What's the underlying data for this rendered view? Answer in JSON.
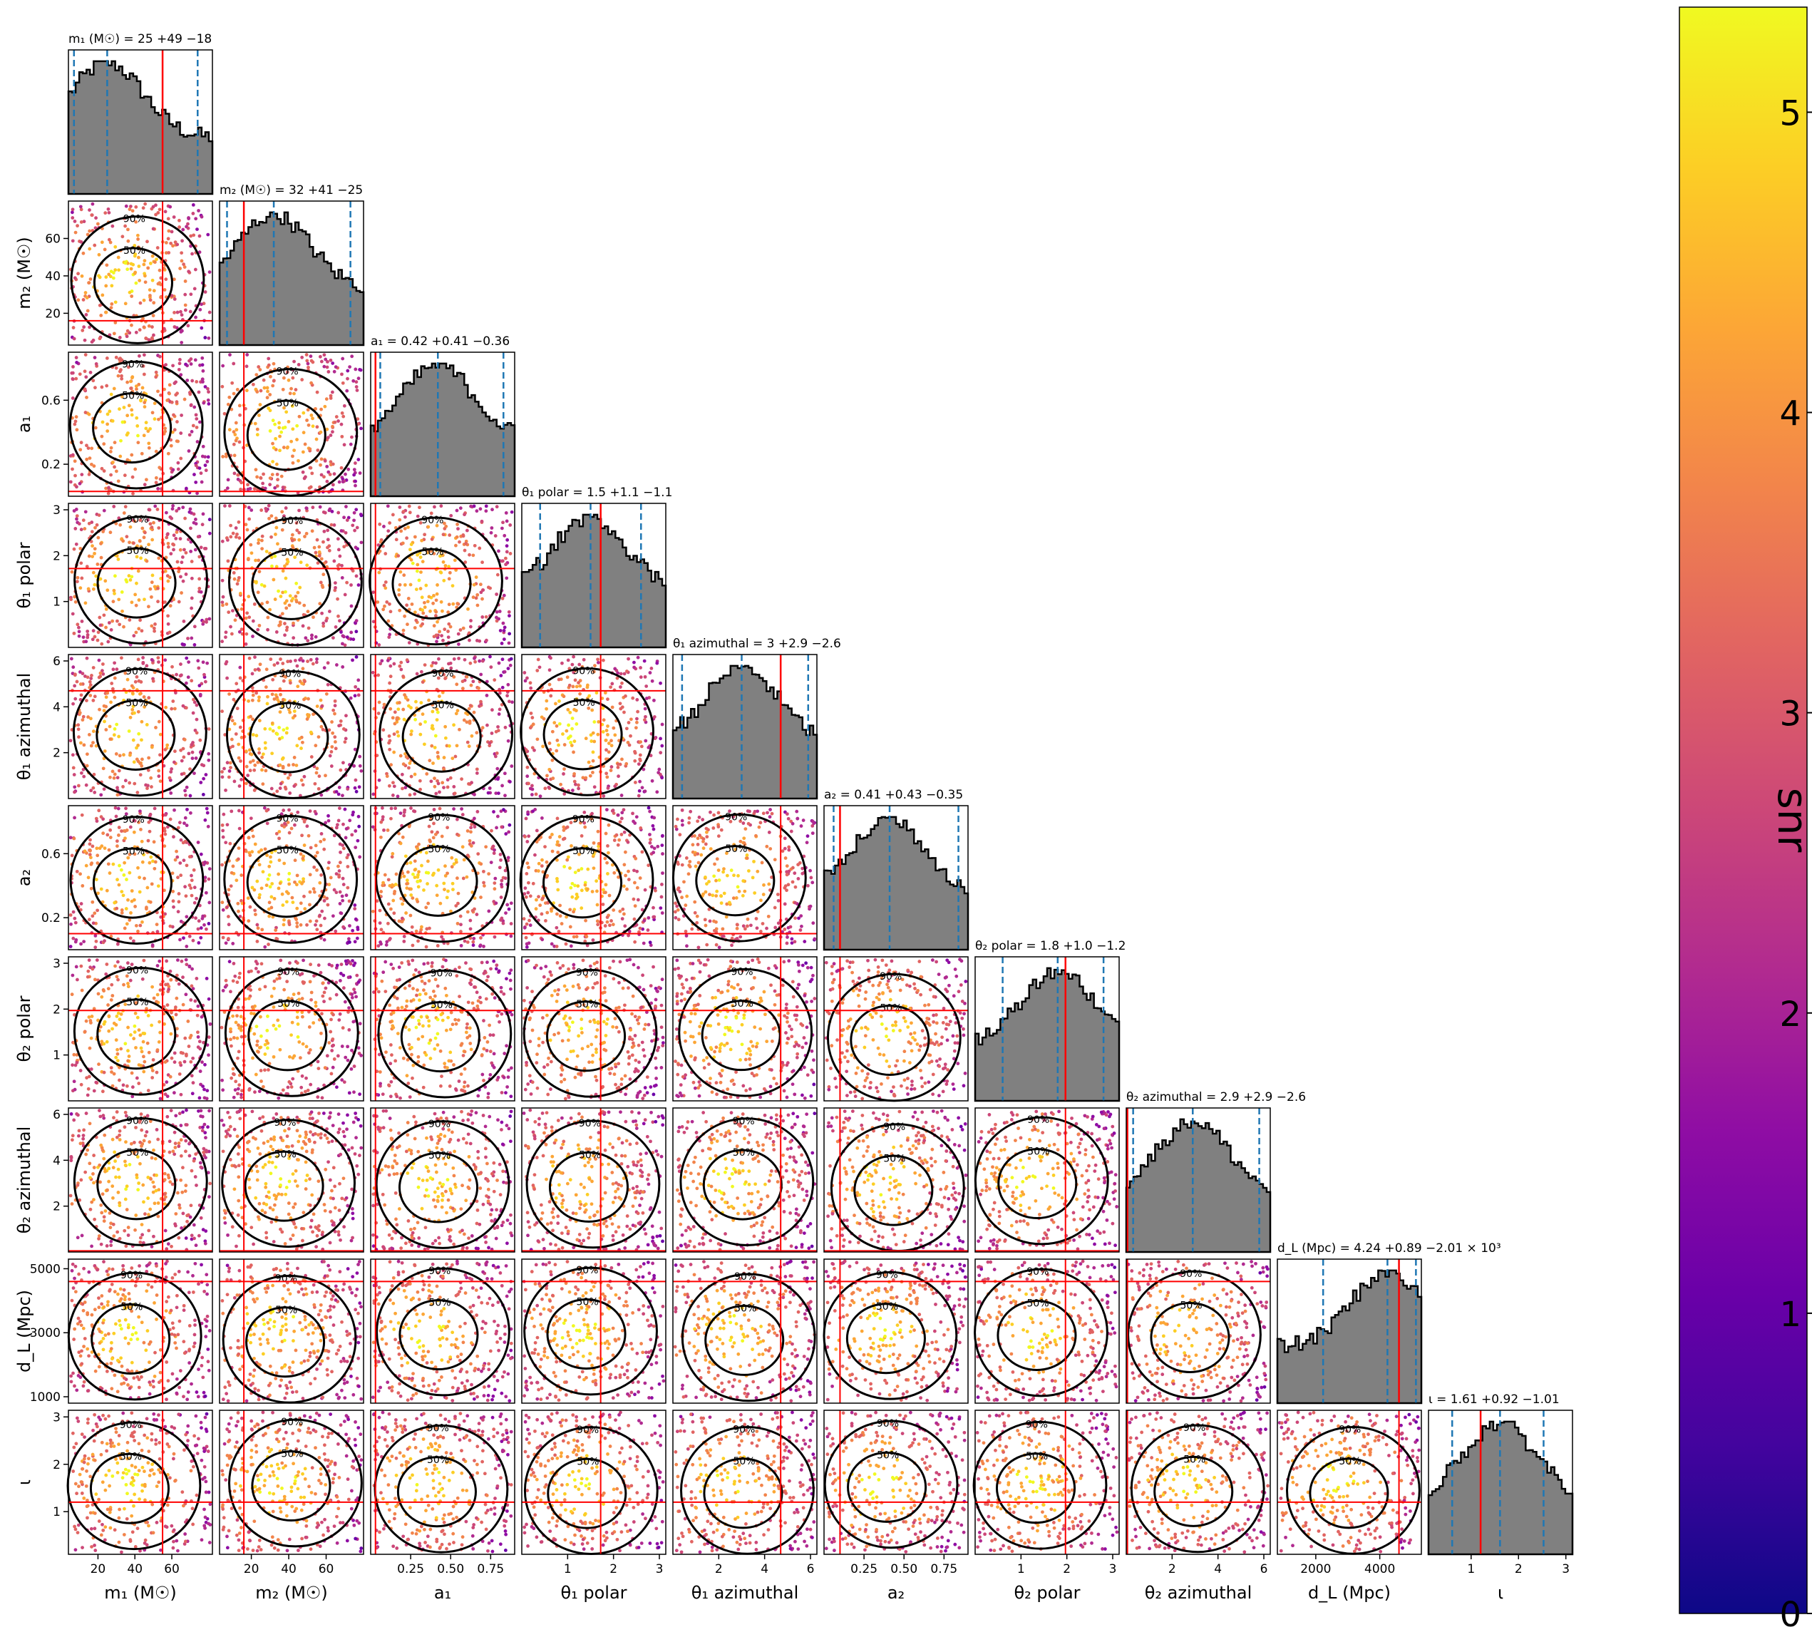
{
  "chart_data": {
    "type": "corner",
    "color_scale": {
      "label": "snr",
      "min": 0,
      "max": 5.35,
      "ticks": [
        0,
        1,
        2,
        3,
        4,
        5
      ],
      "colormap": "plasma"
    },
    "parameters": [
      {
        "id": "m1",
        "axis_label": "m₁ (M☉)",
        "title": "m₁ (M☉) = 25 +49 −18",
        "range": [
          4,
          82
        ],
        "ticks": [
          20,
          40,
          60
        ],
        "tick_labels": [
          "20",
          "40",
          "60"
        ],
        "median": 25,
        "q_low": 7,
        "q_high": 74,
        "truth": 55
      },
      {
        "id": "m2",
        "axis_label": "m₂ (M☉)",
        "title": "m₂ (M☉) = 32 +41 −25",
        "range": [
          3,
          80
        ],
        "ticks": [
          20,
          40,
          60
        ],
        "tick_labels": [
          "20",
          "40",
          "60"
        ],
        "median": 32,
        "q_low": 7,
        "q_high": 73,
        "truth": 16
      },
      {
        "id": "a1",
        "axis_label": "a₁",
        "title": "a₁ = 0.42 +0.41 −0.36",
        "range": [
          0.0,
          0.9
        ],
        "ticks": [
          0.25,
          0.5,
          0.75
        ],
        "tick_labels": [
          "0.25",
          "0.50",
          "0.75"
        ],
        "ticks_left": [
          0.2,
          0.6
        ],
        "tick_labels_left": [
          "0.2",
          "0.6"
        ],
        "median": 0.42,
        "q_low": 0.06,
        "q_high": 0.83,
        "truth": 0.03
      },
      {
        "id": "theta1_polar",
        "axis_label": "θ₁ polar",
        "title": "θ₁ polar = 1.5 +1.1 −1.1",
        "range": [
          0.0,
          3.14
        ],
        "ticks": [
          1,
          2,
          3
        ],
        "tick_labels": [
          "1",
          "2",
          "3"
        ],
        "median": 1.5,
        "q_low": 0.4,
        "q_high": 2.6,
        "truth": 1.72
      },
      {
        "id": "theta1_azimuthal",
        "axis_label": "θ₁ azimuthal",
        "title": "θ₁ azimuthal = 3 +2.9 −2.6",
        "range": [
          0.0,
          6.28
        ],
        "ticks": [
          2,
          4,
          6
        ],
        "tick_labels": [
          "2",
          "4",
          "6"
        ],
        "median": 3.0,
        "q_low": 0.4,
        "q_high": 5.9,
        "truth": 4.7
      },
      {
        "id": "a2",
        "axis_label": "a₂",
        "title": "a₂ = 0.41 +0.43 −0.35",
        "range": [
          0.0,
          0.9
        ],
        "ticks": [
          0.25,
          0.5,
          0.75
        ],
        "tick_labels": [
          "0.25",
          "0.50",
          "0.75"
        ],
        "ticks_left": [
          0.2,
          0.6
        ],
        "tick_labels_left": [
          "0.2",
          "0.6"
        ],
        "median": 0.41,
        "q_low": 0.06,
        "q_high": 0.84,
        "truth": 0.1
      },
      {
        "id": "theta2_polar",
        "axis_label": "θ₂ polar",
        "title": "θ₂ polar = 1.8 +1.0 −1.2",
        "range": [
          0.0,
          3.14
        ],
        "ticks": [
          1,
          2,
          3
        ],
        "tick_labels": [
          "1",
          "2",
          "3"
        ],
        "median": 1.8,
        "q_low": 0.6,
        "q_high": 2.8,
        "truth": 1.97
      },
      {
        "id": "theta2_azimuthal",
        "axis_label": "θ₂ azimuthal",
        "title": "θ₂ azimuthal = 2.9 +2.9 −2.6",
        "range": [
          0.0,
          6.28
        ],
        "ticks": [
          2,
          4,
          6
        ],
        "tick_labels": [
          "2",
          "4",
          "6"
        ],
        "median": 2.9,
        "q_low": 0.3,
        "q_high": 5.8,
        "truth": 0.05
      },
      {
        "id": "dL",
        "axis_label": "d_L (Mpc)",
        "title": "d_L (Mpc) = 4.24 +0.89 −2.01 × 10³",
        "range": [
          800,
          5300
        ],
        "ticks": [
          2000,
          4000
        ],
        "tick_labels": [
          "2000",
          "4000"
        ],
        "ticks_left": [
          1000,
          3000,
          5000
        ],
        "tick_labels_left": [
          "1000",
          "3000",
          "5000"
        ],
        "median": 4240,
        "q_low": 2230,
        "q_high": 5130,
        "truth": 4600
      },
      {
        "id": "iota",
        "axis_label": "ι",
        "title": "ι = 1.61 +0.92 −1.01",
        "range": [
          0.1,
          3.14
        ],
        "ticks": [
          1,
          2,
          3
        ],
        "tick_labels": [
          "1",
          "2",
          "3"
        ],
        "median": 1.61,
        "q_low": 0.6,
        "q_high": 2.53,
        "truth": 1.2
      }
    ],
    "contour_labels": [
      "50%",
      "90%"
    ]
  }
}
